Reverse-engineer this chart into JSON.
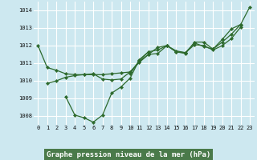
{
  "title": "Graphe pression niveau de la mer (hPa)",
  "background_color": "#cde8f0",
  "grid_color": "#ffffff",
  "line_color": "#2d6a2d",
  "label_bg": "#4a7a4a",
  "label_fg": "#ffffff",
  "x": [
    0,
    1,
    2,
    3,
    4,
    5,
    6,
    7,
    8,
    9,
    10,
    11,
    12,
    13,
    14,
    15,
    16,
    17,
    18,
    19,
    20,
    21,
    22,
    23
  ],
  "line1": [
    1012.0,
    1010.75,
    1010.6,
    1010.4,
    1010.35,
    1010.35,
    1010.35,
    1010.35,
    1010.4,
    1010.45,
    1010.5,
    1011.05,
    1011.5,
    1011.55,
    1012.0,
    1011.65,
    1011.55,
    1012.2,
    1012.2,
    1011.8,
    1012.35,
    1012.95,
    1013.2,
    1014.2
  ],
  "line2": [
    null,
    null,
    null,
    1009.1,
    1008.05,
    1007.9,
    1007.65,
    1008.05,
    1009.3,
    1009.65,
    1010.15,
    1011.2,
    1011.65,
    null,
    null,
    null,
    null,
    null,
    null,
    null,
    null,
    null,
    null,
    null
  ],
  "line3": [
    null,
    null,
    null,
    null,
    null,
    null,
    null,
    null,
    null,
    null,
    1010.4,
    1011.15,
    1011.65,
    1011.75,
    1012.0,
    1011.65,
    1011.6,
    1012.15,
    1011.95,
    1011.8,
    1012.2,
    1012.65,
    1013.2,
    null
  ],
  "line4": [
    null,
    1009.85,
    1010.0,
    1010.2,
    1010.3,
    1010.35,
    1010.4,
    1010.1,
    1010.05,
    1010.1,
    1010.5,
    1011.1,
    1011.5,
    1011.9,
    1012.0,
    1011.7,
    1011.6,
    1012.05,
    1012.0,
    1011.75,
    1012.0,
    1012.4,
    1013.05,
    null
  ],
  "ylim": [
    1007.5,
    1014.5
  ],
  "yticks": [
    1008,
    1009,
    1010,
    1011,
    1012,
    1013,
    1014
  ],
  "xticks": [
    0,
    1,
    2,
    3,
    4,
    5,
    6,
    7,
    8,
    9,
    10,
    11,
    12,
    13,
    14,
    15,
    16,
    17,
    18,
    19,
    20,
    21,
    22,
    23
  ],
  "tick_fontsize": 5.0,
  "title_fontsize": 6.5,
  "marker": "D",
  "markersize": 2.2,
  "linewidth": 0.9
}
